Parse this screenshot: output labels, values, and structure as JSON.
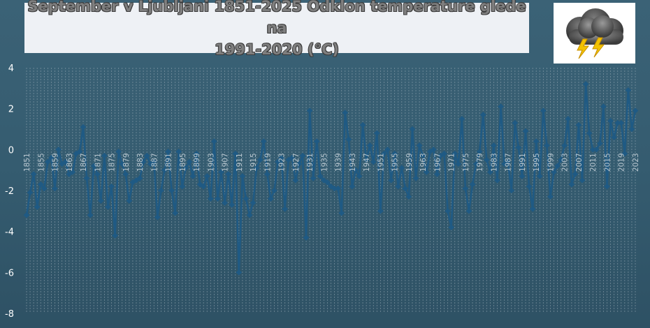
{
  "title": {
    "line1": "September v Ljubljani 1851-2025 Odklon temperature glede na",
    "line2": "1991-2020 (°C)"
  },
  "logo": {
    "icon": "storm-cloud-lightning-icon"
  },
  "colors": {
    "line": "#1f5a84",
    "marker": "#1f5a84",
    "grid": "#aab9c3",
    "tick_text": "#ffffff",
    "xtick_text": "#b9c7d0"
  },
  "chart_data": {
    "type": "line",
    "x_start": 1851,
    "x_end": 2025,
    "ylim": [
      -8,
      4
    ],
    "yticks": [
      4,
      2,
      0,
      -2,
      -4,
      -6,
      -8
    ],
    "xticks": [
      "1851",
      "1855",
      "1859",
      "1863",
      "1867",
      "1871",
      "1875",
      "1879",
      "1883",
      "1887",
      "1891",
      "1895",
      "1899",
      "1903",
      "1907",
      "1911",
      "1915",
      "1919",
      "1923",
      "1927",
      "1931",
      "1935",
      "1939",
      "1943",
      "1947",
      "1951",
      "1955",
      "1959",
      "1963",
      "1967",
      "1971",
      "1975",
      "1979",
      "1983",
      "1987",
      "1991",
      "1995",
      "1999",
      "2003",
      "2007",
      "2011",
      "2015",
      "2019",
      "2023"
    ],
    "grid": true,
    "markers": "diamond",
    "series": [
      {
        "values": [
          -3.2,
          -2.1,
          -1.2,
          -2.8,
          -1.7,
          -1.9,
          -0.6,
          -0.4,
          -1.9,
          0.0,
          -0.7,
          -0.6,
          -1.2,
          -1.1,
          -0.2,
          -0.1,
          1.1,
          -1.4,
          -3.2,
          -0.8,
          -1.2,
          -2.5,
          -0.3,
          -2.8,
          -1.8,
          -4.2,
          -0.1,
          -0.7,
          -1.2,
          -2.5,
          -1.6,
          -1.5,
          -1.4,
          -0.6,
          -0.3,
          -0.7,
          -0.6,
          -3.3,
          -2.0,
          -1.0,
          -0.1,
          -2.0,
          -3.1,
          -0.1,
          -1.8,
          -0.9,
          -0.6,
          -1.3,
          -0.2,
          -1.7,
          -1.8,
          -1.3,
          -2.4,
          0.4,
          -2.4,
          -1.1,
          -2.6,
          -1.2,
          -2.7,
          -0.2,
          -6.0,
          -1.3,
          -2.4,
          -3.2,
          -2.6,
          -0.9,
          -0.5,
          0.4,
          -1.2,
          -2.4,
          -2.0,
          -0.6,
          -0.4,
          -2.9,
          -0.5,
          -0.4,
          -1.5,
          -0.7,
          -0.3,
          -4.3,
          1.9,
          -1.4,
          0.4,
          -1.3,
          -1.5,
          -1.6,
          -1.8,
          -1.9,
          -1.9,
          -3.1,
          1.8,
          0.5,
          -1.8,
          -1.0,
          -1.3,
          1.2,
          -0.5,
          0.2,
          -0.6,
          0.8,
          -3.0,
          -0.2,
          0.0,
          -1.5,
          -0.2,
          -1.8,
          -0.9,
          -1.9,
          -2.3,
          1.0,
          -1.4,
          0.2,
          -0.3,
          -1.1,
          -0.1,
          0.0,
          -1.2,
          -0.3,
          -0.2,
          -3.0,
          -3.8,
          -0.2,
          -0.7,
          1.5,
          -1.9,
          -3.0,
          -1.7,
          -0.7,
          -0.1,
          1.7,
          -0.5,
          -1.1,
          0.2,
          -1.5,
          2.1,
          -0.7,
          -0.6,
          -2.0,
          1.3,
          0.1,
          -1.3,
          0.9,
          -1.8,
          -2.9,
          0.4,
          -1.3,
          1.9,
          0.2,
          -2.3,
          -1.1,
          -0.8,
          -0.5,
          0.2,
          1.5,
          -1.7,
          -1.2,
          1.2,
          -1.5,
          3.2,
          0.8,
          0.0,
          0.0,
          0.3,
          2.1,
          -1.8,
          1.4,
          0.6,
          1.3,
          1.3,
          -0.2,
          2.9,
          1.0,
          1.9
        ]
      }
    ]
  }
}
